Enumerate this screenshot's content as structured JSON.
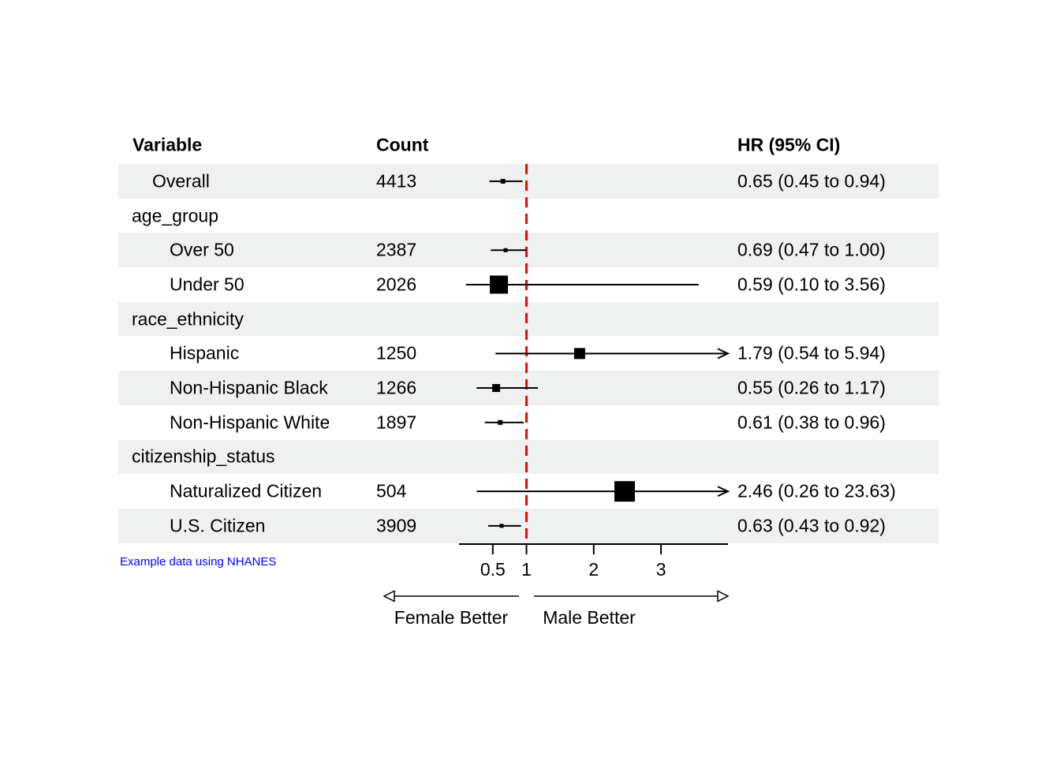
{
  "headers": {
    "variable": "Variable",
    "count": "Count",
    "hr": "HR (95% CI)"
  },
  "chart_data": {
    "type": "forest",
    "orientation": "horizontal",
    "x_axis": {
      "scale": "linear",
      "min": 0,
      "max": 4,
      "ticks": [
        "0.5",
        "1",
        "2",
        "3"
      ],
      "tick_values": [
        0.5,
        1,
        2,
        3
      ],
      "reference_line": 1,
      "reference_line_style": "dashed"
    },
    "arrow_labels": {
      "left": "Female Better",
      "right": "Male Better"
    },
    "rows": [
      {
        "label": "Overall",
        "indent": 1,
        "group": false,
        "count": "4413",
        "hr_text": "0.65 (0.45 to 0.94)",
        "est": 0.65,
        "lo": 0.45,
        "hi": 0.94,
        "marker_size": 6,
        "shaded": true,
        "clipped": false
      },
      {
        "label": "age_group",
        "indent": 0,
        "group": true,
        "count": "",
        "hr_text": "",
        "shaded": false
      },
      {
        "label": "Over 50",
        "indent": 2,
        "group": false,
        "count": "2387",
        "hr_text": "0.69 (0.47 to 1.00)",
        "est": 0.69,
        "lo": 0.47,
        "hi": 1.0,
        "marker_size": 5,
        "shaded": true,
        "clipped": false
      },
      {
        "label": "Under 50",
        "indent": 2,
        "group": false,
        "count": "2026",
        "hr_text": "0.59 (0.10 to 3.56)",
        "est": 0.59,
        "lo": 0.1,
        "hi": 3.56,
        "marker_size": 23,
        "shaded": false,
        "clipped": false
      },
      {
        "label": "race_ethnicity",
        "indent": 0,
        "group": true,
        "count": "",
        "hr_text": "",
        "shaded": true
      },
      {
        "label": "Hispanic",
        "indent": 2,
        "group": false,
        "count": "1250",
        "hr_text": "1.79 (0.54 to 5.94)",
        "est": 1.79,
        "lo": 0.54,
        "hi": 5.94,
        "marker_size": 14,
        "shaded": false,
        "clipped": true
      },
      {
        "label": "Non-Hispanic Black",
        "indent": 2,
        "group": false,
        "count": "1266",
        "hr_text": "0.55 (0.26 to 1.17)",
        "est": 0.55,
        "lo": 0.26,
        "hi": 1.17,
        "marker_size": 10,
        "shaded": true,
        "clipped": false
      },
      {
        "label": "Non-Hispanic White",
        "indent": 2,
        "group": false,
        "count": "1897",
        "hr_text": "0.61 (0.38 to 0.96)",
        "est": 0.61,
        "lo": 0.38,
        "hi": 0.96,
        "marker_size": 6,
        "shaded": false,
        "clipped": false
      },
      {
        "label": "citizenship_status",
        "indent": 0,
        "group": true,
        "count": "",
        "hr_text": "",
        "shaded": true
      },
      {
        "label": "Naturalized Citizen",
        "indent": 2,
        "group": false,
        "count": "504",
        "hr_text": "2.46 (0.26 to 23.63)",
        "est": 2.46,
        "lo": 0.26,
        "hi": 23.63,
        "marker_size": 26,
        "shaded": false,
        "clipped": true
      },
      {
        "label": "U.S. Citizen",
        "indent": 2,
        "group": false,
        "count": "3909",
        "hr_text": "0.63 (0.43 to 0.92)",
        "est": 0.63,
        "lo": 0.43,
        "hi": 0.92,
        "marker_size": 5,
        "shaded": true,
        "clipped": false
      }
    ]
  },
  "footnote": {
    "text": "Example data using NHANES"
  },
  "colors": {
    "background": "#ffffff",
    "row_band": "#eff1f0",
    "reference_line": "#ff0000",
    "ci_line": "#000000",
    "marker": "#000000",
    "text": "#000000",
    "footnote": "#0000ff"
  }
}
